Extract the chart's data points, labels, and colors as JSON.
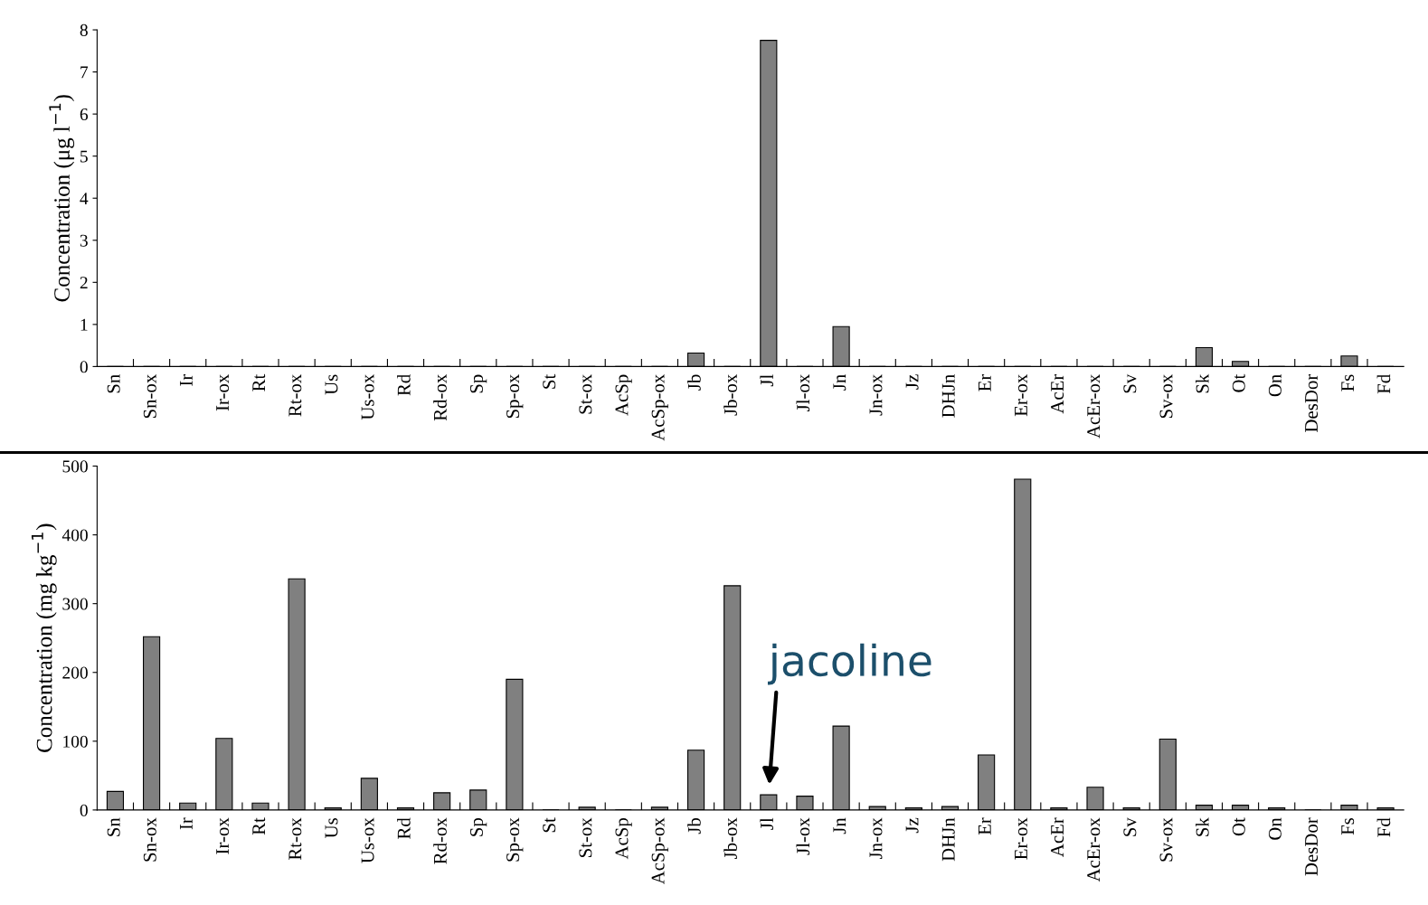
{
  "chart_data": [
    {
      "type": "bar",
      "ylabel": "Concentration (μg l$^{−1}$)",
      "categories": [
        "Sn",
        "Sn-ox",
        "Ir",
        "Ir-ox",
        "Rt",
        "Rt-ox",
        "Us",
        "Us-ox",
        "Rd",
        "Rd-ox",
        "Sp",
        "Sp-ox",
        "St",
        "St-ox",
        "AcSp",
        "AcSp-ox",
        "Jb",
        "Jb-ox",
        "Jl",
        "Jl-ox",
        "Jn",
        "Jn-ox",
        "Jz",
        "DHJn",
        "Er",
        "Er-ox",
        "AcEr",
        "AcEr-ox",
        "Sv",
        "Sv-ox",
        "Sk",
        "Ot",
        "On",
        "DesDor",
        "Fs",
        "Fd"
      ],
      "values": [
        0,
        0,
        0,
        0,
        0,
        0,
        0,
        0,
        0,
        0,
        0,
        0,
        0,
        0,
        0,
        0,
        0.32,
        0,
        7.75,
        0,
        0.95,
        0,
        0,
        0,
        0,
        0,
        0,
        0,
        0,
        0,
        0.45,
        0.12,
        0,
        0,
        0.25,
        0
      ],
      "color": "#808080",
      "ylim": [
        0,
        8
      ],
      "yticks": [
        0,
        1,
        2,
        3,
        4,
        5,
        6,
        7,
        8
      ],
      "grid": false,
      "legend": false
    },
    {
      "type": "bar",
      "ylabel": "Concentration (mg kg$^{−1}$)",
      "categories": [
        "Sn",
        "Sn-ox",
        "Ir",
        "Ir-ox",
        "Rt",
        "Rt-ox",
        "Us",
        "Us-ox",
        "Rd",
        "Rd-ox",
        "Sp",
        "Sp-ox",
        "St",
        "St-ox",
        "AcSp",
        "AcSp-ox",
        "Jb",
        "Jb-ox",
        "Jl",
        "Jl-ox",
        "Jn",
        "Jn-ox",
        "Jz",
        "DHJn",
        "Er",
        "Er-ox",
        "AcEr",
        "AcEr-ox",
        "Sv",
        "Sv-ox",
        "Sk",
        "Ot",
        "On",
        "DesDor",
        "Fs",
        "Fd"
      ],
      "values": [
        27,
        252,
        10,
        104,
        10,
        336,
        3,
        46,
        3,
        25,
        29,
        190,
        0,
        4,
        0,
        4,
        87,
        326,
        22,
        20,
        122,
        5,
        3,
        5,
        80,
        481,
        3,
        33,
        3,
        103,
        7,
        7,
        3,
        0,
        7,
        3
      ],
      "color": "#808080",
      "ylim": [
        0,
        500
      ],
      "yticks": [
        0,
        100,
        200,
        300,
        400,
        500
      ],
      "grid": false,
      "legend": false,
      "annotations": [
        {
          "text": "jacoline",
          "x": "Jl",
          "y": 22
        }
      ]
    }
  ]
}
